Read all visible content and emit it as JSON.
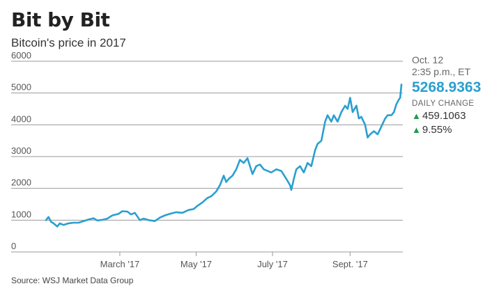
{
  "header": {
    "title": "Bit by Bit",
    "subtitle": "Bitcoin's price in 2017"
  },
  "annotation": {
    "date": "Oct. 12",
    "time": "2:35 p.m., ET",
    "price": "5268.9363",
    "change_label": "DAILY CHANGE",
    "change_abs": "459.1063",
    "change_pct": "9.55%",
    "up_icon": "up-triangle-icon"
  },
  "source": "Source: WSJ Market Data Group",
  "colors": {
    "series": "#2a9fd0",
    "up": "#1f9a4b"
  },
  "chart_data": {
    "type": "line",
    "title": "Bit by Bit",
    "subtitle": "Bitcoin's price in 2017",
    "xlabel": "",
    "ylabel": "",
    "x_ticks": [
      {
        "label": "March '17",
        "date": "2017-03-01"
      },
      {
        "label": "May '17",
        "date": "2017-05-01"
      },
      {
        "label": "July '17",
        "date": "2017-07-01"
      },
      {
        "label": "Sept. '17",
        "date": "2017-09-01"
      }
    ],
    "y_ticks": [
      0,
      1000,
      2000,
      3000,
      4000,
      5000,
      6000
    ],
    "ylim": [
      0,
      6000
    ],
    "xlim": [
      "2017-01-01",
      "2017-10-12"
    ],
    "grid": true,
    "series": [
      {
        "x": [
          "2017-01-01",
          "2017-01-03",
          "2017-01-05",
          "2017-01-07",
          "2017-01-10",
          "2017-01-12",
          "2017-01-15",
          "2017-01-19",
          "2017-01-23",
          "2017-01-27",
          "2017-01-31",
          "2017-02-04",
          "2017-02-08",
          "2017-02-11",
          "2017-02-15",
          "2017-02-19",
          "2017-02-23",
          "2017-02-28",
          "2017-03-03",
          "2017-03-07",
          "2017-03-10",
          "2017-03-13",
          "2017-03-17",
          "2017-03-20",
          "2017-03-24",
          "2017-03-29",
          "2017-04-02",
          "2017-04-06",
          "2017-04-10",
          "2017-04-15",
          "2017-04-20",
          "2017-04-25",
          "2017-04-29",
          "2017-05-02",
          "2017-05-06",
          "2017-05-10",
          "2017-05-13",
          "2017-05-17",
          "2017-05-20",
          "2017-05-23",
          "2017-05-25",
          "2017-05-27",
          "2017-05-30",
          "2017-06-02",
          "2017-06-05",
          "2017-06-08",
          "2017-06-11",
          "2017-06-13",
          "2017-06-15",
          "2017-06-18",
          "2017-06-21",
          "2017-06-24",
          "2017-06-27",
          "2017-06-30",
          "2017-07-04",
          "2017-07-08",
          "2017-07-12",
          "2017-07-15",
          "2017-07-16",
          "2017-07-18",
          "2017-07-20",
          "2017-07-23",
          "2017-07-26",
          "2017-07-29",
          "2017-08-01",
          "2017-08-04",
          "2017-08-06",
          "2017-08-09",
          "2017-08-12",
          "2017-08-14",
          "2017-08-17",
          "2017-08-19",
          "2017-08-22",
          "2017-08-25",
          "2017-08-28",
          "2017-08-30",
          "2017-09-01",
          "2017-09-03",
          "2017-09-06",
          "2017-09-08",
          "2017-09-10",
          "2017-09-13",
          "2017-09-15",
          "2017-09-17",
          "2017-09-20",
          "2017-09-23",
          "2017-09-26",
          "2017-09-29",
          "2017-10-01",
          "2017-10-04",
          "2017-10-06",
          "2017-10-08",
          "2017-10-10",
          "2017-10-11",
          "2017-10-12"
        ],
        "values": [
          1000,
          1100,
          950,
          900,
          800,
          900,
          850,
          900,
          920,
          920,
          970,
          1020,
          1060,
          990,
          1010,
          1050,
          1150,
          1200,
          1280,
          1270,
          1180,
          1230,
          1000,
          1050,
          1000,
          970,
          1080,
          1150,
          1200,
          1250,
          1230,
          1320,
          1350,
          1450,
          1560,
          1700,
          1750,
          1900,
          2100,
          2400,
          2200,
          2300,
          2400,
          2600,
          2900,
          2800,
          2950,
          2700,
          2450,
          2700,
          2750,
          2600,
          2550,
          2500,
          2600,
          2550,
          2300,
          2100,
          1950,
          2300,
          2600,
          2700,
          2500,
          2800,
          2700,
          3200,
          3400,
          3500,
          4100,
          4300,
          4100,
          4300,
          4100,
          4400,
          4600,
          4500,
          4850,
          4400,
          4600,
          4200,
          4250,
          4000,
          3600,
          3700,
          3800,
          3700,
          3950,
          4200,
          4300,
          4300,
          4400,
          4650,
          4800,
          4850,
          5268.9363
        ]
      }
    ]
  }
}
